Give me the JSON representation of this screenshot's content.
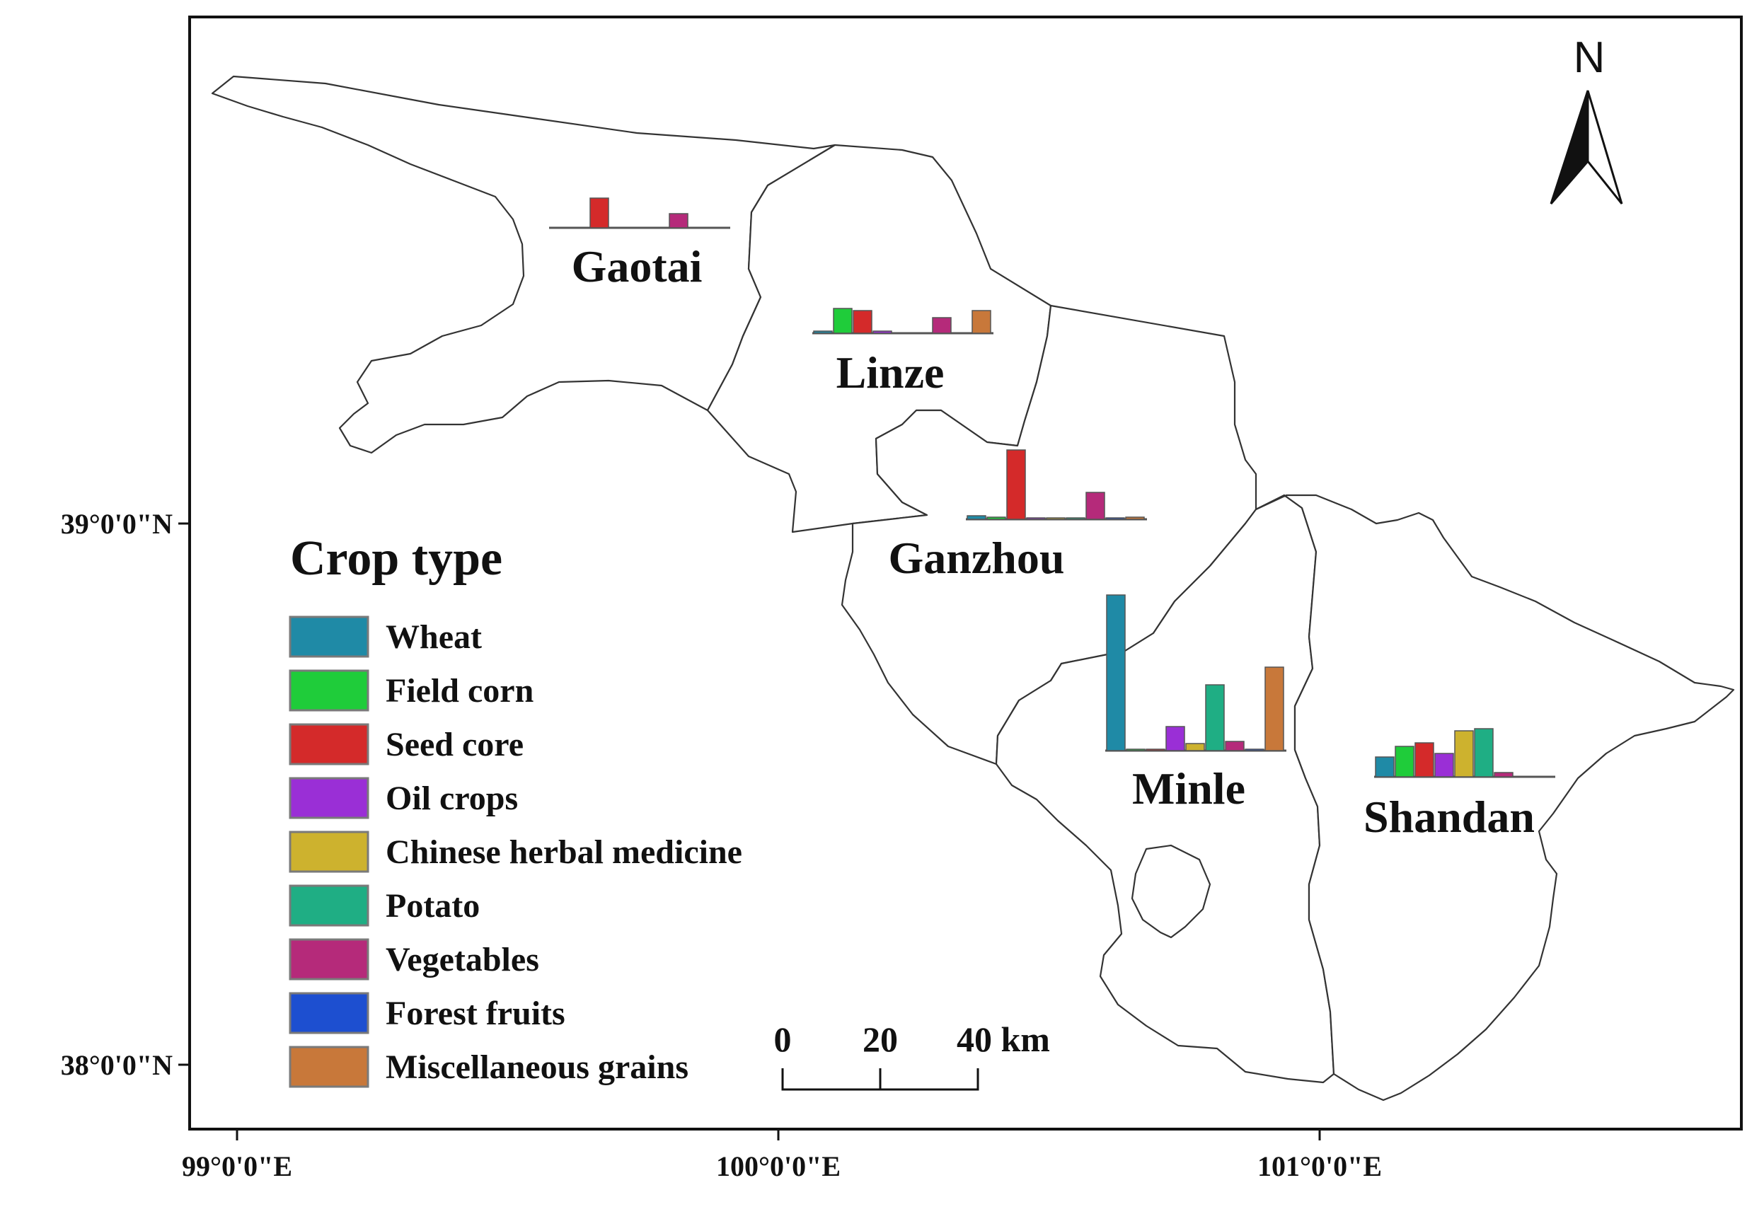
{
  "map": {
    "north_label": "N",
    "latitude_labels": [
      "39°0'0\"N",
      "38°0'0\"N"
    ],
    "longitude_labels": [
      "99°0'0\"E",
      "100°0'0\"E",
      "101°0'0\"E"
    ],
    "counties": [
      "Gaotai",
      "Linze",
      "Ganzhou",
      "Minle",
      "Shandan"
    ],
    "scale_bar": {
      "ticks": [
        "0",
        "20",
        "40 km"
      ]
    }
  },
  "legend": {
    "title": "Crop type",
    "items": [
      {
        "label": "Wheat",
        "color": "#1f8aa6"
      },
      {
        "label": "Field corn",
        "color": "#1fcc3a"
      },
      {
        "label": "Seed core",
        "color": "#d42a2a"
      },
      {
        "label": "Oil crops",
        "color": "#9a2fd6"
      },
      {
        "label": "Chinese herbal medicine",
        "color": "#cdb22e"
      },
      {
        "label": "Potato",
        "color": "#1fae84"
      },
      {
        "label": "Vegetables",
        "color": "#b52a7a"
      },
      {
        "label": "Forest fruits",
        "color": "#1d4fd0"
      },
      {
        "label": "Miscellaneous grains",
        "color": "#c8783a"
      }
    ]
  },
  "chart_data": [
    {
      "type": "bar",
      "region": "Gaotai",
      "categories": [
        "Wheat",
        "Field corn",
        "Seed core",
        "Oil crops",
        "Chinese herbal medicine",
        "Potato",
        "Vegetables",
        "Forest fruits",
        "Miscellaneous grains"
      ],
      "values": [
        0,
        0,
        4.2,
        0,
        0,
        0,
        2.0,
        0,
        0
      ]
    },
    {
      "type": "bar",
      "region": "Linze",
      "categories": [
        "Wheat",
        "Field corn",
        "Seed core",
        "Oil crops",
        "Chinese herbal medicine",
        "Potato",
        "Vegetables",
        "Forest fruits",
        "Miscellaneous grains"
      ],
      "values": [
        0.3,
        3.5,
        3.2,
        0.3,
        0,
        0,
        2.2,
        0,
        3.2
      ]
    },
    {
      "type": "bar",
      "region": "Ganzhou",
      "categories": [
        "Wheat",
        "Field corn",
        "Seed core",
        "Oil crops",
        "Chinese herbal medicine",
        "Potato",
        "Vegetables",
        "Forest fruits",
        "Miscellaneous grains"
      ],
      "values": [
        0.5,
        0.3,
        9.8,
        0.2,
        0.2,
        0.2,
        3.8,
        0.2,
        0.3
      ]
    },
    {
      "type": "bar",
      "region": "Minle",
      "categories": [
        "Wheat",
        "Field corn",
        "Seed core",
        "Oil crops",
        "Chinese herbal medicine",
        "Potato",
        "Vegetables",
        "Forest fruits",
        "Miscellaneous grains"
      ],
      "values": [
        22,
        0.2,
        0.2,
        3.4,
        1.0,
        9.3,
        1.3,
        0.2,
        11.8
      ]
    },
    {
      "type": "bar",
      "region": "Shandan",
      "categories": [
        "Wheat",
        "Field corn",
        "Seed core",
        "Oil crops",
        "Chinese herbal medicine",
        "Potato",
        "Vegetables",
        "Forest fruits",
        "Miscellaneous grains"
      ],
      "values": [
        2.8,
        4.3,
        4.8,
        3.3,
        6.5,
        6.8,
        0.6,
        0,
        0
      ]
    }
  ]
}
